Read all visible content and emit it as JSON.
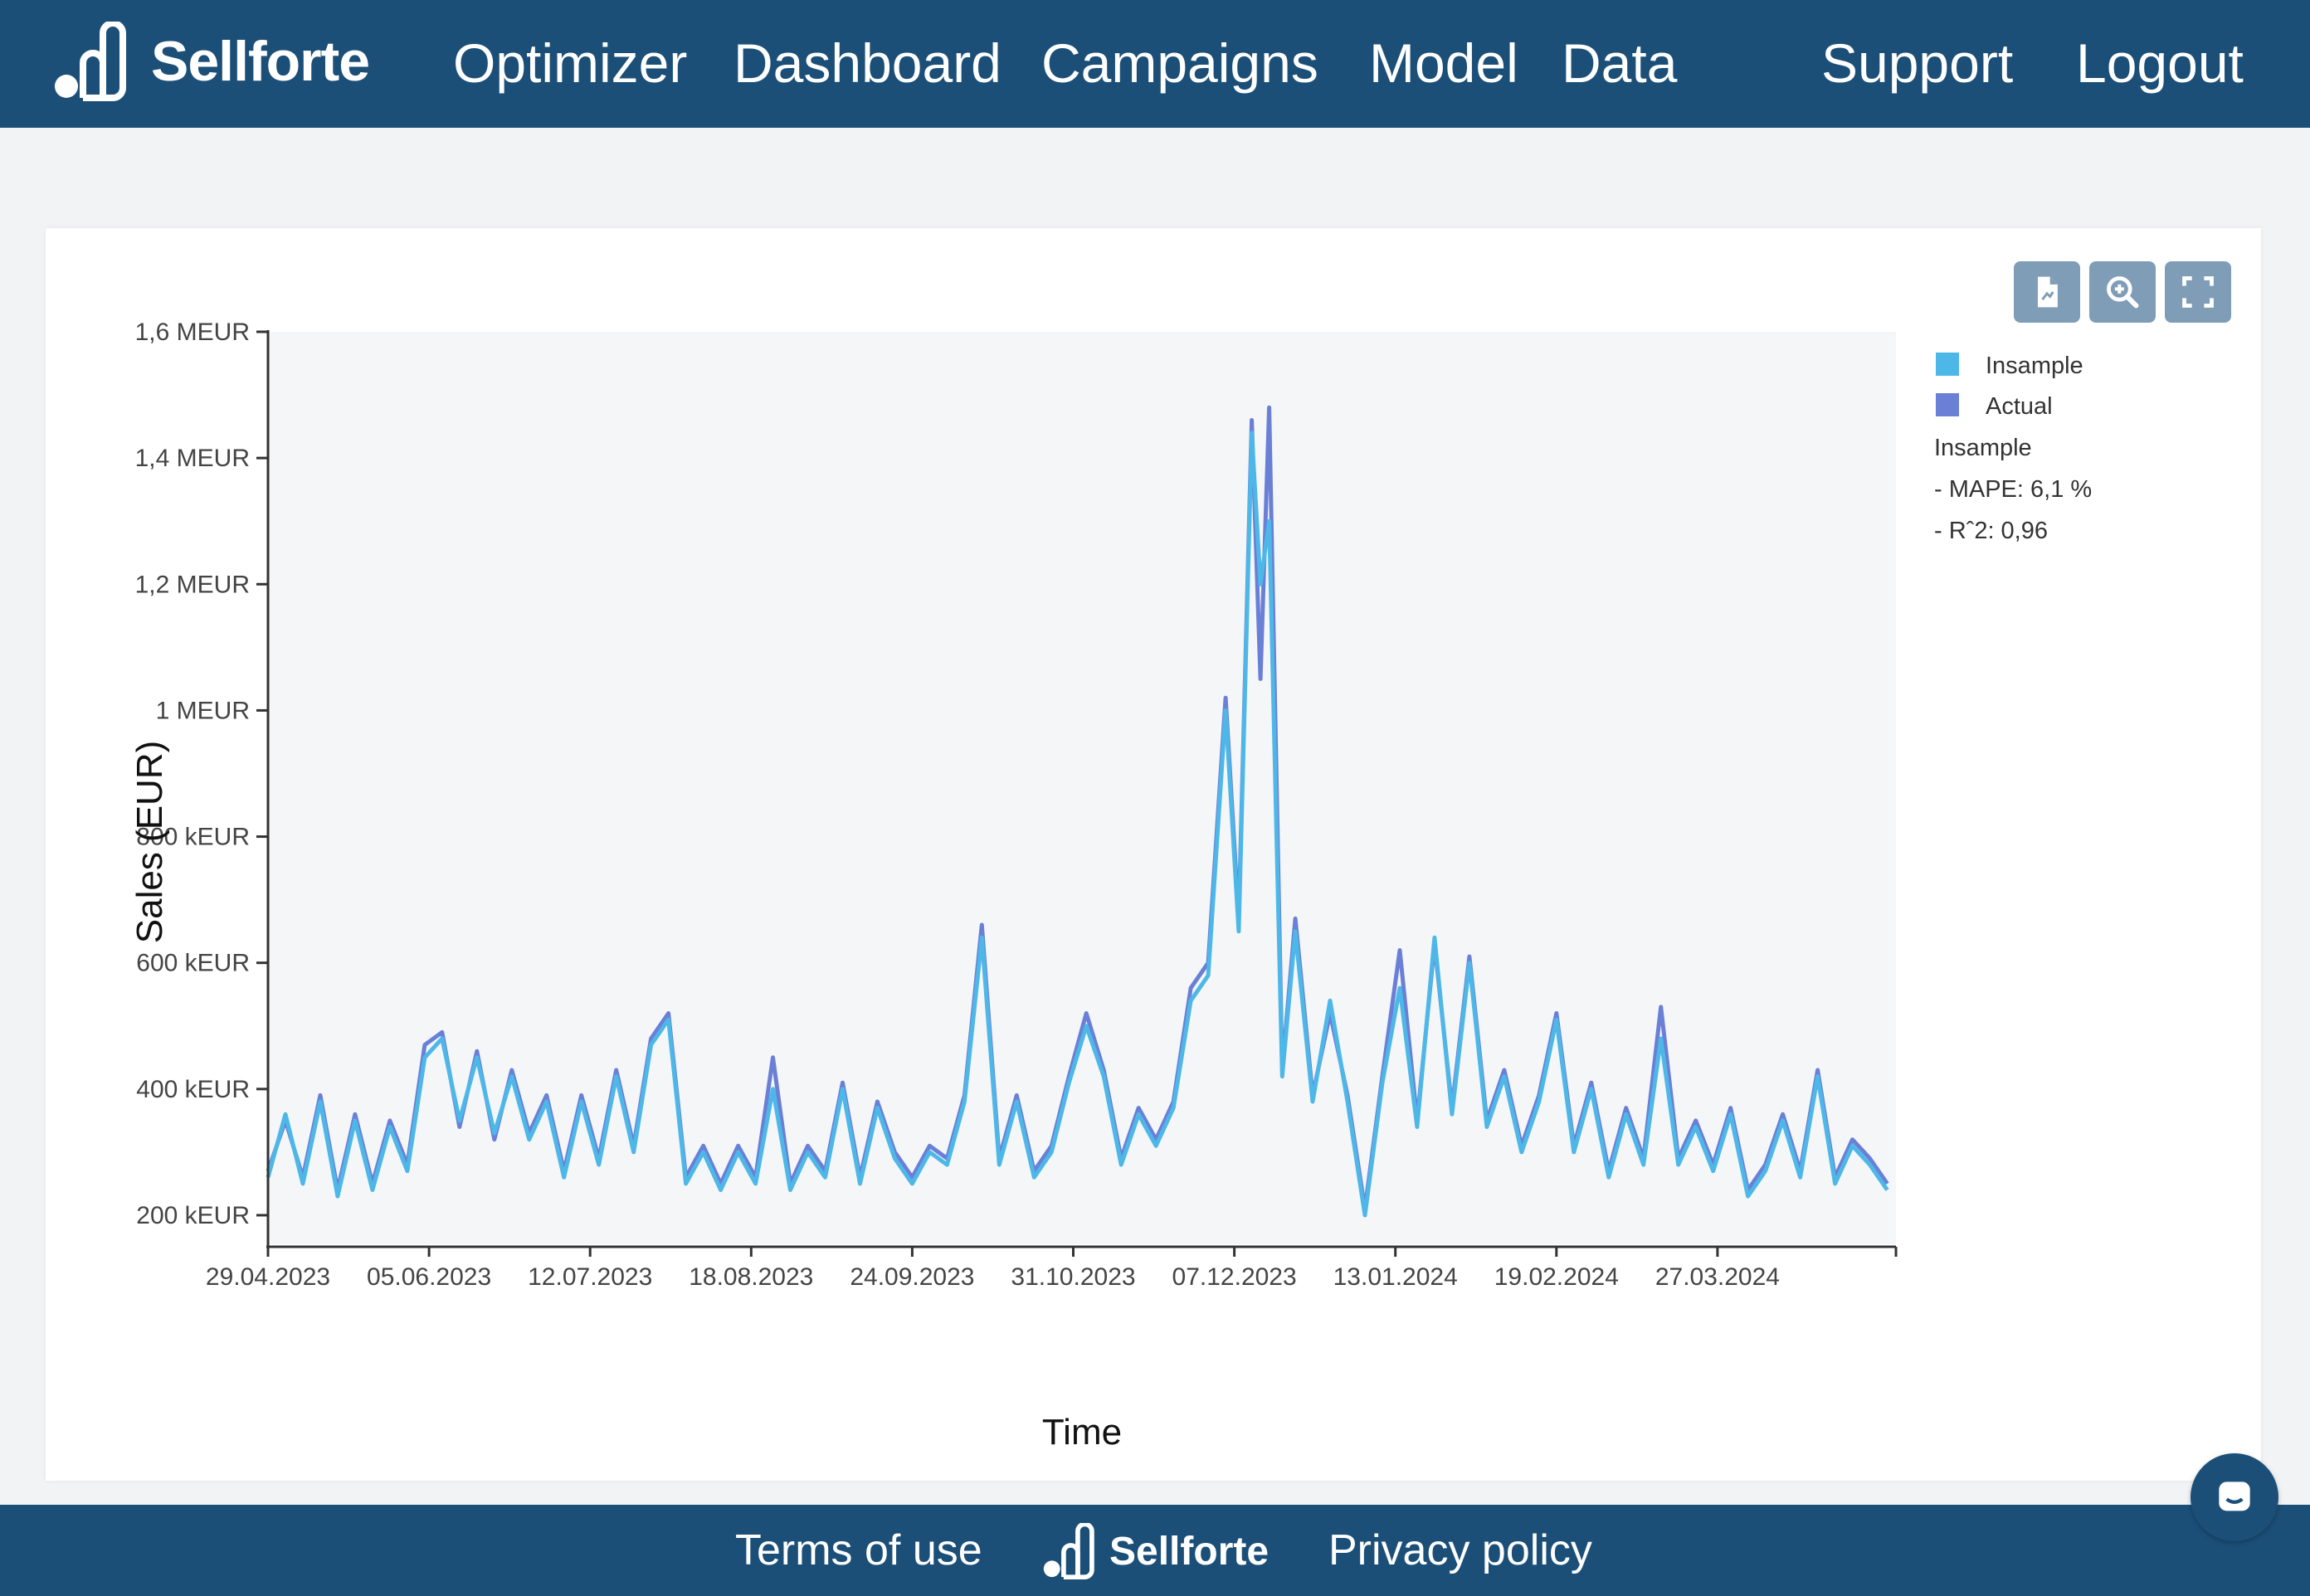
{
  "header": {
    "brand": "Sellforte",
    "nav": [
      {
        "id": "optimizer",
        "label": "Optimizer"
      },
      {
        "id": "dashboard",
        "label": "Dashboard"
      },
      {
        "id": "campaigns",
        "label": "Campaigns"
      },
      {
        "id": "model",
        "label": "Model"
      },
      {
        "id": "data",
        "label": "Data"
      },
      {
        "id": "support",
        "label": "Support"
      },
      {
        "id": "logout",
        "label": "Logout"
      }
    ]
  },
  "toolbar": {
    "icons": [
      "export-report-icon",
      "zoom-in-icon",
      "fullscreen-icon"
    ]
  },
  "colors": {
    "header_bg": "#1b4f78",
    "insample": "#4db8e8",
    "actual": "#6a7fd6"
  },
  "chart_data": {
    "type": "line",
    "xlabel": "Time",
    "ylabel": "Sales (EUR)",
    "ylim": [
      150000,
      1600000
    ],
    "y_ticks": [
      {
        "value": 200000,
        "label": "200 kEUR"
      },
      {
        "value": 400000,
        "label": "400 kEUR"
      },
      {
        "value": 600000,
        "label": "600 kEUR"
      },
      {
        "value": 800000,
        "label": "800 kEUR"
      },
      {
        "value": 1000000,
        "label": "1 MEUR"
      },
      {
        "value": 1200000,
        "label": "1,2 MEUR"
      },
      {
        "value": 1400000,
        "label": "1,4 MEUR"
      },
      {
        "value": 1600000,
        "label": "1,6 MEUR"
      }
    ],
    "x_range": [
      "2023-04-29",
      "2024-05-07"
    ],
    "x_ticks": [
      "29.04.2023",
      "05.06.2023",
      "12.07.2023",
      "18.08.2023",
      "24.09.2023",
      "31.10.2023",
      "07.12.2023",
      "13.01.2024",
      "19.02.2024",
      "27.03.2024"
    ],
    "x_tick_dates": [
      "2023-04-29",
      "2023-06-05",
      "2023-07-12",
      "2023-08-18",
      "2023-09-24",
      "2023-10-31",
      "2023-12-07",
      "2024-01-13",
      "2024-02-19",
      "2024-03-27"
    ],
    "grid": false,
    "legend_position": "right",
    "series": [
      {
        "name": "Insample",
        "color": "#4db8e8",
        "points": [
          [
            "2023-04-29",
            260000
          ],
          [
            "2023-05-03",
            360000
          ],
          [
            "2023-05-07",
            250000
          ],
          [
            "2023-05-11",
            380000
          ],
          [
            "2023-05-15",
            230000
          ],
          [
            "2023-05-19",
            350000
          ],
          [
            "2023-05-23",
            240000
          ],
          [
            "2023-05-27",
            340000
          ],
          [
            "2023-05-31",
            270000
          ],
          [
            "2023-06-04",
            450000
          ],
          [
            "2023-06-08",
            480000
          ],
          [
            "2023-06-12",
            350000
          ],
          [
            "2023-06-16",
            450000
          ],
          [
            "2023-06-20",
            330000
          ],
          [
            "2023-06-24",
            420000
          ],
          [
            "2023-06-28",
            320000
          ],
          [
            "2023-07-02",
            380000
          ],
          [
            "2023-07-06",
            260000
          ],
          [
            "2023-07-10",
            380000
          ],
          [
            "2023-07-14",
            280000
          ],
          [
            "2023-07-18",
            420000
          ],
          [
            "2023-07-22",
            300000
          ],
          [
            "2023-07-26",
            470000
          ],
          [
            "2023-07-30",
            510000
          ],
          [
            "2023-08-03",
            250000
          ],
          [
            "2023-08-07",
            300000
          ],
          [
            "2023-08-11",
            240000
          ],
          [
            "2023-08-15",
            300000
          ],
          [
            "2023-08-19",
            250000
          ],
          [
            "2023-08-23",
            400000
          ],
          [
            "2023-08-27",
            240000
          ],
          [
            "2023-08-31",
            300000
          ],
          [
            "2023-09-04",
            260000
          ],
          [
            "2023-09-08",
            400000
          ],
          [
            "2023-09-12",
            250000
          ],
          [
            "2023-09-16",
            370000
          ],
          [
            "2023-09-20",
            290000
          ],
          [
            "2023-09-24",
            250000
          ],
          [
            "2023-09-28",
            300000
          ],
          [
            "2023-10-02",
            280000
          ],
          [
            "2023-10-06",
            380000
          ],
          [
            "2023-10-10",
            640000
          ],
          [
            "2023-10-14",
            280000
          ],
          [
            "2023-10-18",
            380000
          ],
          [
            "2023-10-22",
            260000
          ],
          [
            "2023-10-26",
            300000
          ],
          [
            "2023-10-30",
            410000
          ],
          [
            "2023-11-03",
            500000
          ],
          [
            "2023-11-07",
            420000
          ],
          [
            "2023-11-11",
            280000
          ],
          [
            "2023-11-15",
            360000
          ],
          [
            "2023-11-19",
            310000
          ],
          [
            "2023-11-23",
            370000
          ],
          [
            "2023-11-27",
            540000
          ],
          [
            "2023-12-01",
            580000
          ],
          [
            "2023-12-05",
            1000000
          ],
          [
            "2023-12-08",
            650000
          ],
          [
            "2023-12-11",
            1440000
          ],
          [
            "2023-12-13",
            1200000
          ],
          [
            "2023-12-15",
            1300000
          ],
          [
            "2023-12-18",
            420000
          ],
          [
            "2023-12-21",
            650000
          ],
          [
            "2023-12-25",
            380000
          ],
          [
            "2023-12-29",
            540000
          ],
          [
            "2024-01-02",
            380000
          ],
          [
            "2024-01-06",
            200000
          ],
          [
            "2024-01-10",
            410000
          ],
          [
            "2024-01-14",
            560000
          ],
          [
            "2024-01-18",
            340000
          ],
          [
            "2024-01-22",
            640000
          ],
          [
            "2024-01-26",
            360000
          ],
          [
            "2024-01-30",
            600000
          ],
          [
            "2024-02-03",
            340000
          ],
          [
            "2024-02-07",
            420000
          ],
          [
            "2024-02-11",
            300000
          ],
          [
            "2024-02-15",
            380000
          ],
          [
            "2024-02-19",
            510000
          ],
          [
            "2024-02-23",
            300000
          ],
          [
            "2024-02-27",
            400000
          ],
          [
            "2024-03-02",
            260000
          ],
          [
            "2024-03-06",
            360000
          ],
          [
            "2024-03-10",
            280000
          ],
          [
            "2024-03-14",
            480000
          ],
          [
            "2024-03-18",
            280000
          ],
          [
            "2024-03-22",
            340000
          ],
          [
            "2024-03-26",
            270000
          ],
          [
            "2024-03-30",
            360000
          ],
          [
            "2024-04-03",
            230000
          ],
          [
            "2024-04-07",
            270000
          ],
          [
            "2024-04-11",
            350000
          ],
          [
            "2024-04-15",
            260000
          ],
          [
            "2024-04-19",
            420000
          ],
          [
            "2024-04-23",
            250000
          ],
          [
            "2024-04-27",
            310000
          ],
          [
            "2024-05-01",
            280000
          ],
          [
            "2024-05-05",
            240000
          ]
        ]
      },
      {
        "name": "Actual",
        "color": "#6a7fd6",
        "points": [
          [
            "2023-04-29",
            270000
          ],
          [
            "2023-05-03",
            350000
          ],
          [
            "2023-05-07",
            260000
          ],
          [
            "2023-05-11",
            390000
          ],
          [
            "2023-05-15",
            240000
          ],
          [
            "2023-05-19",
            360000
          ],
          [
            "2023-05-23",
            250000
          ],
          [
            "2023-05-27",
            350000
          ],
          [
            "2023-05-31",
            280000
          ],
          [
            "2023-06-04",
            470000
          ],
          [
            "2023-06-08",
            490000
          ],
          [
            "2023-06-12",
            340000
          ],
          [
            "2023-06-16",
            460000
          ],
          [
            "2023-06-20",
            320000
          ],
          [
            "2023-06-24",
            430000
          ],
          [
            "2023-06-28",
            330000
          ],
          [
            "2023-07-02",
            390000
          ],
          [
            "2023-07-06",
            270000
          ],
          [
            "2023-07-10",
            390000
          ],
          [
            "2023-07-14",
            290000
          ],
          [
            "2023-07-18",
            430000
          ],
          [
            "2023-07-22",
            310000
          ],
          [
            "2023-07-26",
            480000
          ],
          [
            "2023-07-30",
            520000
          ],
          [
            "2023-08-03",
            260000
          ],
          [
            "2023-08-07",
            310000
          ],
          [
            "2023-08-11",
            250000
          ],
          [
            "2023-08-15",
            310000
          ],
          [
            "2023-08-19",
            260000
          ],
          [
            "2023-08-23",
            450000
          ],
          [
            "2023-08-27",
            250000
          ],
          [
            "2023-08-31",
            310000
          ],
          [
            "2023-09-04",
            270000
          ],
          [
            "2023-09-08",
            410000
          ],
          [
            "2023-09-12",
            260000
          ],
          [
            "2023-09-16",
            380000
          ],
          [
            "2023-09-20",
            300000
          ],
          [
            "2023-09-24",
            260000
          ],
          [
            "2023-09-28",
            310000
          ],
          [
            "2023-10-02",
            290000
          ],
          [
            "2023-10-06",
            390000
          ],
          [
            "2023-10-10",
            660000
          ],
          [
            "2023-10-14",
            290000
          ],
          [
            "2023-10-18",
            390000
          ],
          [
            "2023-10-22",
            270000
          ],
          [
            "2023-10-26",
            310000
          ],
          [
            "2023-10-30",
            420000
          ],
          [
            "2023-11-03",
            520000
          ],
          [
            "2023-11-07",
            430000
          ],
          [
            "2023-11-11",
            290000
          ],
          [
            "2023-11-15",
            370000
          ],
          [
            "2023-11-19",
            320000
          ],
          [
            "2023-11-23",
            380000
          ],
          [
            "2023-11-27",
            560000
          ],
          [
            "2023-12-01",
            600000
          ],
          [
            "2023-12-05",
            1020000
          ],
          [
            "2023-12-08",
            670000
          ],
          [
            "2023-12-11",
            1460000
          ],
          [
            "2023-12-13",
            1050000
          ],
          [
            "2023-12-15",
            1480000
          ],
          [
            "2023-12-18",
            430000
          ],
          [
            "2023-12-21",
            670000
          ],
          [
            "2023-12-25",
            390000
          ],
          [
            "2023-12-29",
            520000
          ],
          [
            "2024-01-02",
            390000
          ],
          [
            "2024-01-06",
            210000
          ],
          [
            "2024-01-10",
            420000
          ],
          [
            "2024-01-14",
            620000
          ],
          [
            "2024-01-18",
            350000
          ],
          [
            "2024-01-22",
            630000
          ],
          [
            "2024-01-26",
            370000
          ],
          [
            "2024-01-30",
            610000
          ],
          [
            "2024-02-03",
            350000
          ],
          [
            "2024-02-07",
            430000
          ],
          [
            "2024-02-11",
            310000
          ],
          [
            "2024-02-15",
            390000
          ],
          [
            "2024-02-19",
            520000
          ],
          [
            "2024-02-23",
            310000
          ],
          [
            "2024-02-27",
            410000
          ],
          [
            "2024-03-02",
            270000
          ],
          [
            "2024-03-06",
            370000
          ],
          [
            "2024-03-10",
            290000
          ],
          [
            "2024-03-14",
            530000
          ],
          [
            "2024-03-18",
            290000
          ],
          [
            "2024-03-22",
            350000
          ],
          [
            "2024-03-26",
            280000
          ],
          [
            "2024-03-30",
            370000
          ],
          [
            "2024-04-03",
            240000
          ],
          [
            "2024-04-07",
            280000
          ],
          [
            "2024-04-11",
            360000
          ],
          [
            "2024-04-15",
            270000
          ],
          [
            "2024-04-19",
            430000
          ],
          [
            "2024-04-23",
            260000
          ],
          [
            "2024-04-27",
            320000
          ],
          [
            "2024-05-01",
            290000
          ],
          [
            "2024-05-05",
            250000
          ]
        ]
      }
    ],
    "annotations": [
      "Insample",
      "- MAPE: 6,1 %",
      "- Rˆ2: 0,96"
    ]
  },
  "footer": {
    "terms": "Terms of use",
    "brand": "Sellforte",
    "privacy": "Privacy policy"
  },
  "chat": {
    "icon": "chat-icon"
  }
}
